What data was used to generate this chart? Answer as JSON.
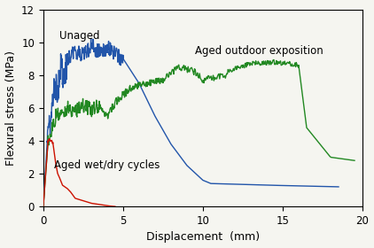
{
  "title": "",
  "xlabel": "Displacement  (mm)",
  "ylabel": "Flexural stress (MPa)",
  "xlim": [
    0,
    20
  ],
  "ylim": [
    0,
    12
  ],
  "xticks": [
    0,
    5,
    10,
    15,
    20
  ],
  "yticks": [
    0,
    2,
    4,
    6,
    8,
    10,
    12
  ],
  "blue_label": "Unaged",
  "green_label": "Aged outdoor exposition",
  "red_label": "Aged wet/dry cycles",
  "blue_color": "#2255aa",
  "green_color": "#228822",
  "red_color": "#cc1100",
  "background_color": "#f5f5f0",
  "annotation_fontsize": 8.5
}
